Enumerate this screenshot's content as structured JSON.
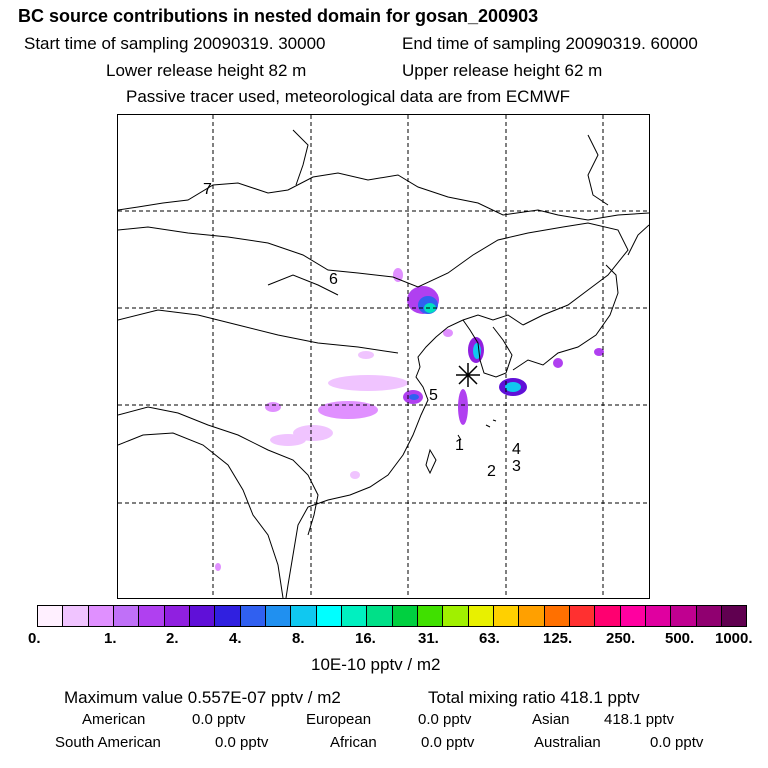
{
  "title": "BC  source contributions in nested domain for gosan_200903",
  "start_time": "Start time of sampling 20090319. 30000",
  "end_time": "End time of sampling 20090319. 60000",
  "lower_height": "Lower release height   82 m",
  "upper_height": "Upper release height   62 m",
  "note": "Passive tracer used, meteorological data are from ECMWF",
  "map_labels": [
    "7",
    "6",
    "5",
    "1",
    "2",
    "3",
    "4"
  ],
  "colorbar": {
    "colors": [
      "#fff0ff",
      "#f0c4ff",
      "#e090ff",
      "#c070f8",
      "#b040f0",
      "#9020e0",
      "#6010d8",
      "#3020e0",
      "#3060f0",
      "#2090f0",
      "#10c8f0",
      "#00ffff",
      "#00f0c0",
      "#00e088",
      "#00d040",
      "#40e000",
      "#a0f000",
      "#e8f000",
      "#ffd000",
      "#ffa000",
      "#ff7000",
      "#ff3030",
      "#ff0070",
      "#ff00a0",
      "#e000a0",
      "#c00090",
      "#900070",
      "#600050"
    ],
    "ticks": [
      "0.",
      "1.",
      "2.",
      "4.",
      "8.",
      "16.",
      "31.",
      "63.",
      "125.",
      "250.",
      "500.",
      "1000."
    ],
    "unit": "10E-10 pptv / m2"
  },
  "stats": {
    "max_value": "Maximum value  0.557E-07 pptv / m2",
    "total_mixing": "Total mixing ratio     418.1 pptv",
    "american_label": "American",
    "american_val": "0.0 pptv",
    "european_label": "European",
    "european_val": "0.0 pptv",
    "asian_label": "Asian",
    "asian_val": "418.1 pptv",
    "south_american_label": "South American",
    "south_american_val": "0.0 pptv",
    "african_label": "African",
    "african_val": "0.0 pptv",
    "australian_label": "Australian",
    "australian_val": "0.0 pptv"
  }
}
